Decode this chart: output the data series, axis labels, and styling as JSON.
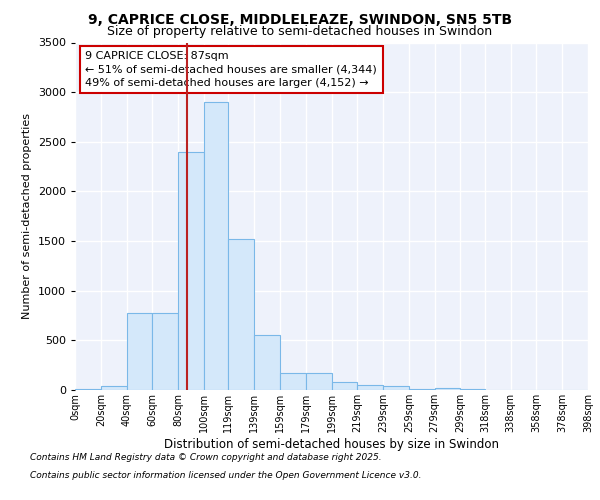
{
  "title": "9, CAPRICE CLOSE, MIDDLELEAZE, SWINDON, SN5 5TB",
  "subtitle": "Size of property relative to semi-detached houses in Swindon",
  "xlabel": "Distribution of semi-detached houses by size in Swindon",
  "ylabel": "Number of semi-detached properties",
  "bar_lefts": [
    0,
    20,
    40,
    60,
    80,
    100,
    119,
    139,
    159,
    179,
    199,
    219,
    239,
    259,
    279,
    299,
    318,
    338,
    358,
    378
  ],
  "bar_rights": [
    20,
    40,
    60,
    80,
    100,
    119,
    139,
    159,
    179,
    199,
    219,
    239,
    259,
    279,
    299,
    318,
    338,
    358,
    378,
    398
  ],
  "bar_heights": [
    10,
    40,
    780,
    780,
    2400,
    2900,
    1520,
    550,
    175,
    175,
    85,
    55,
    40,
    10,
    20,
    10,
    5,
    3,
    3,
    3
  ],
  "tick_labels": [
    "0sqm",
    "20sqm",
    "40sqm",
    "60sqm",
    "80sqm",
    "100sqm",
    "119sqm",
    "139sqm",
    "159sqm",
    "179sqm",
    "199sqm",
    "219sqm",
    "239sqm",
    "259sqm",
    "279sqm",
    "299sqm",
    "318sqm",
    "338sqm",
    "358sqm",
    "378sqm",
    "398sqm"
  ],
  "bar_color": "#d4e8fa",
  "bar_edge_color": "#7ab8e8",
  "property_size": 87,
  "red_line_color": "#bb2222",
  "annotation_text": "9 CAPRICE CLOSE: 87sqm\n← 51% of semi-detached houses are smaller (4,344)\n49% of semi-detached houses are larger (4,152) →",
  "annotation_box_color": "white",
  "annotation_box_edge": "#cc0000",
  "ylim": [
    0,
    3500
  ],
  "yticks": [
    0,
    500,
    1000,
    1500,
    2000,
    2500,
    3000,
    3500
  ],
  "bg_color": "#eef2fb",
  "grid_color": "white",
  "footer_line1": "Contains HM Land Registry data © Crown copyright and database right 2025.",
  "footer_line2": "Contains public sector information licensed under the Open Government Licence v3.0."
}
